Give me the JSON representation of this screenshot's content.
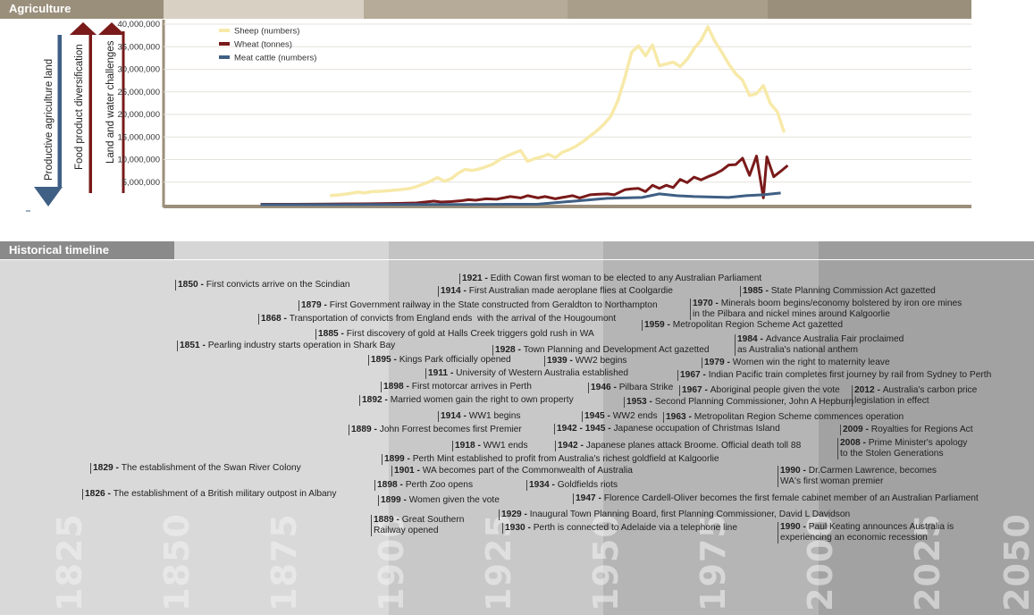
{
  "sections": {
    "agriculture": "Agriculture",
    "timeline": "Historical timeline"
  },
  "arrows": [
    {
      "label": "Productive agriculture land",
      "direction": "down",
      "color": "#3f5f84"
    },
    {
      "label": "Food product diversification",
      "direction": "up",
      "color": "#7a1a1a"
    },
    {
      "label": "Land and water challenges",
      "direction": "up",
      "color": "#7a1a1a"
    }
  ],
  "colors": {
    "header_dark": "#9a8f7b",
    "header_mid": "#b5ab98",
    "header_light": "#d8d0c3",
    "timeline_dark": "#8a8a8a",
    "timeline_mid": "#b3b3b3",
    "timeline_light": "#d3d3d3",
    "axis": "#9c8f7a",
    "sheep": "#f7e9a8",
    "wheat": "#7a1a1a",
    "cattle": "#3f5f84"
  },
  "chart_data": {
    "type": "line",
    "title": "",
    "xlabel": "",
    "ylabel": "",
    "xlim": [
      1822,
      2055
    ],
    "ylim": [
      0,
      41000000
    ],
    "yticks": [
      "5,000,000",
      "10,000,000",
      "15,000,000",
      "20,000,000",
      "25,000,000",
      "30,000,000",
      "35,000,000",
      "40,000,000"
    ],
    "ytick_values": [
      5000000,
      10000000,
      15000000,
      20000000,
      25000000,
      30000000,
      35000000,
      40000000
    ],
    "grid": true,
    "legend_position": "top-left",
    "series": [
      {
        "name": "Sheep (numbers)",
        "color": "#f7e9a8",
        "x": [
          1870,
          1873,
          1876,
          1878,
          1880,
          1882,
          1885,
          1887,
          1890,
          1893,
          1895,
          1897,
          1899,
          1901,
          1903,
          1905,
          1907,
          1909,
          1911,
          1913,
          1915,
          1917,
          1919,
          1921,
          1923,
          1925,
          1927,
          1929,
          1931,
          1933,
          1935,
          1937,
          1939,
          1941,
          1943,
          1945,
          1947,
          1949,
          1951,
          1953,
          1955,
          1957,
          1959,
          1961,
          1963,
          1965,
          1967,
          1969,
          1971,
          1973,
          1975,
          1977,
          1979,
          1981,
          1983,
          1985,
          1987,
          1989,
          1991,
          1993,
          1995,
          1997,
          1999,
          2001
        ],
        "y": [
          2000000,
          2200000,
          2500000,
          2800000,
          2600000,
          2900000,
          3000000,
          3100000,
          3300000,
          3600000,
          4000000,
          4600000,
          5200000,
          6000000,
          5200000,
          5800000,
          7000000,
          7800000,
          7600000,
          7900000,
          8400000,
          9000000,
          10000000,
          10800000,
          11400000,
          12000000,
          9600000,
          10200000,
          10600000,
          11200000,
          10400000,
          11600000,
          12200000,
          13000000,
          14000000,
          15200000,
          16400000,
          17800000,
          19600000,
          23000000,
          28000000,
          33800000,
          35200000,
          33000000,
          35400000,
          30800000,
          31200000,
          31600000,
          30600000,
          32200000,
          34600000,
          36400000,
          39400000,
          36200000,
          33800000,
          31200000,
          29000000,
          27600000,
          24200000,
          24600000,
          26400000,
          22400000,
          20600000,
          16000000
        ]
      },
      {
        "name": "Wheat (tonnes)",
        "color": "#7a1a1a",
        "x": [
          1850,
          1860,
          1870,
          1880,
          1890,
          1895,
          1900,
          1902,
          1905,
          1908,
          1910,
          1912,
          1915,
          1918,
          1920,
          1922,
          1925,
          1927,
          1930,
          1932,
          1935,
          1937,
          1940,
          1942,
          1945,
          1947,
          1950,
          1952,
          1955,
          1957,
          1959,
          1961,
          1963,
          1965,
          1967,
          1969,
          1971,
          1973,
          1975,
          1977,
          1979,
          1981,
          1983,
          1985,
          1987,
          1989,
          1991,
          1993,
          1995,
          1996,
          1998,
          2000,
          2002
        ],
        "y": [
          100000,
          100000,
          150000,
          200000,
          300000,
          400000,
          800000,
          600000,
          700000,
          900000,
          1100000,
          1000000,
          1300000,
          1200000,
          1500000,
          1800000,
          1500000,
          2000000,
          1500000,
          1800000,
          1300000,
          1600000,
          2000000,
          1500000,
          2200000,
          2300000,
          2400000,
          2200000,
          3300000,
          3500000,
          3600000,
          2900000,
          4300000,
          3600000,
          4300000,
          3800000,
          5600000,
          4900000,
          6100000,
          5500000,
          6200000,
          6800000,
          7600000,
          8800000,
          8900000,
          10300000,
          6500000,
          10800000,
          1500000,
          10600000,
          6200000,
          7400000,
          8700000
        ]
      },
      {
        "name": "Meat cattle (numbers)",
        "color": "#3f5f84",
        "x": [
          1850,
          1870,
          1890,
          1910,
          1930,
          1950,
          1955,
          1960,
          1965,
          1970,
          1975,
          1980,
          1985,
          1990,
          1995,
          2000
        ],
        "y": [
          20000,
          20000,
          30000,
          60000,
          120000,
          1400000,
          1500000,
          1600000,
          2400000,
          2000000,
          1800000,
          1700000,
          1600000,
          2000000,
          2200000,
          2600000
        ]
      }
    ],
    "timeline_axis": [
      "1825",
      "1850",
      "1875",
      "1900",
      "1925",
      "1950",
      "1975",
      "2000",
      "2025",
      "2050"
    ]
  },
  "timeline": [
    {
      "year": "1850",
      "text": "First convicts arrive on the Scindian"
    },
    {
      "year": "1879",
      "text": "First Government railway in the State constructed from Geraldton to Northampton"
    },
    {
      "year": "1868",
      "text": "Transportation of convicts from England ends  with the arrival of the Hougoumont"
    },
    {
      "year": "1885",
      "text": "First discovery of gold at Halls Creek triggers gold rush in WA"
    },
    {
      "year": "1851",
      "text": "Pearling industry starts operation in Shark Bay"
    },
    {
      "year": "1921",
      "text": "Edith Cowan first woman to be elected to any Australian Parliament"
    },
    {
      "year": "1914",
      "text": "First Australian made aeroplane flies at Coolgardie"
    },
    {
      "year": "1985",
      "text": "State Planning Commission Act gazetted"
    },
    {
      "year": "1970",
      "text": "Minerals boom begins/economy bolstered by iron ore mines\nin the Pilbara and nickel mines around Kalgoorlie"
    },
    {
      "year": "1959",
      "text": "Metropolitan Region Scheme Act gazetted"
    },
    {
      "year": "1984",
      "text": "Advance Australia Fair proclaimed\nas Australia's national anthem"
    },
    {
      "year": "1928",
      "text": "Town Planning and Development Act gazetted"
    },
    {
      "year": "1895",
      "text": "Kings Park officially opened"
    },
    {
      "year": "1939",
      "text": "WW2 begins"
    },
    {
      "year": "1979",
      "text": "Women win the right to maternity leave"
    },
    {
      "year": "1911",
      "text": "University of Western Australia established"
    },
    {
      "year": "1967",
      "text": "Indian Pacific train completes first journey by rail from Sydney to Perth"
    },
    {
      "year": "1898",
      "text": "First motorcar arrives in Perth"
    },
    {
      "year": "1946",
      "text": "Pilbara Strike"
    },
    {
      "year": "1967",
      "text": "Aboriginal people given the vote"
    },
    {
      "year": "2012",
      "text": "Australia's carbon price\nlegislation in effect"
    },
    {
      "year": "1892",
      "text": "Married women gain the right to own property"
    },
    {
      "year": "1953",
      "text": "Second Planning Commissioner, John A Hepburn"
    },
    {
      "year": "1914",
      "text": "WW1 begins"
    },
    {
      "year": "1945",
      "text": "WW2 ends"
    },
    {
      "year": "1963",
      "text": "Metropolitan Region Scheme commences operation"
    },
    {
      "year": "1889",
      "text": "John Forrest becomes first Premier"
    },
    {
      "year": "1942 - 1945",
      "text": "Japanese occupation of Christmas Island"
    },
    {
      "year": "2009",
      "text": "Royalties for Regions Act"
    },
    {
      "year": "1918",
      "text": "WW1 ends"
    },
    {
      "year": "1942",
      "text": "Japanese planes attack Broome. Official death toll 88"
    },
    {
      "year": "2008",
      "text": "Prime Minister's apology\nto the Stolen Generations"
    },
    {
      "year": "1899",
      "text": "Perth Mint established to profit from Australia's richest goldfield at Kalgoorlie"
    },
    {
      "year": "1829",
      "text": "The establishment of the Swan River Colony"
    },
    {
      "year": "1901",
      "text": "WA becomes part of the Commonwealth of Australia"
    },
    {
      "year": "1990",
      "text": "Dr.Carmen Lawrence, becomes\nWA's first woman premier"
    },
    {
      "year": "1898",
      "text": "Perth Zoo opens"
    },
    {
      "year": "1934",
      "text": "Goldfields riots"
    },
    {
      "year": "1826",
      "text": "The establishment of a British military outpost in Albany"
    },
    {
      "year": "1899",
      "text": "Women given the vote"
    },
    {
      "year": "1947",
      "text": "Florence Cardell-Oliver becomes the first female cabinet member of an Australian Parliament"
    },
    {
      "year": "1929",
      "text": "Inaugural Town Planning Board, first Planning Commissioner, David L Davidson"
    },
    {
      "year": "1889",
      "text": "Great Southern\nRailway opened"
    },
    {
      "year": "1930",
      "text": "Perth is connected to Adelaide via a telephone line"
    },
    {
      "year": "1990",
      "text": "Paul Keating announces Australia is\nexperiencing an economic recession"
    }
  ]
}
